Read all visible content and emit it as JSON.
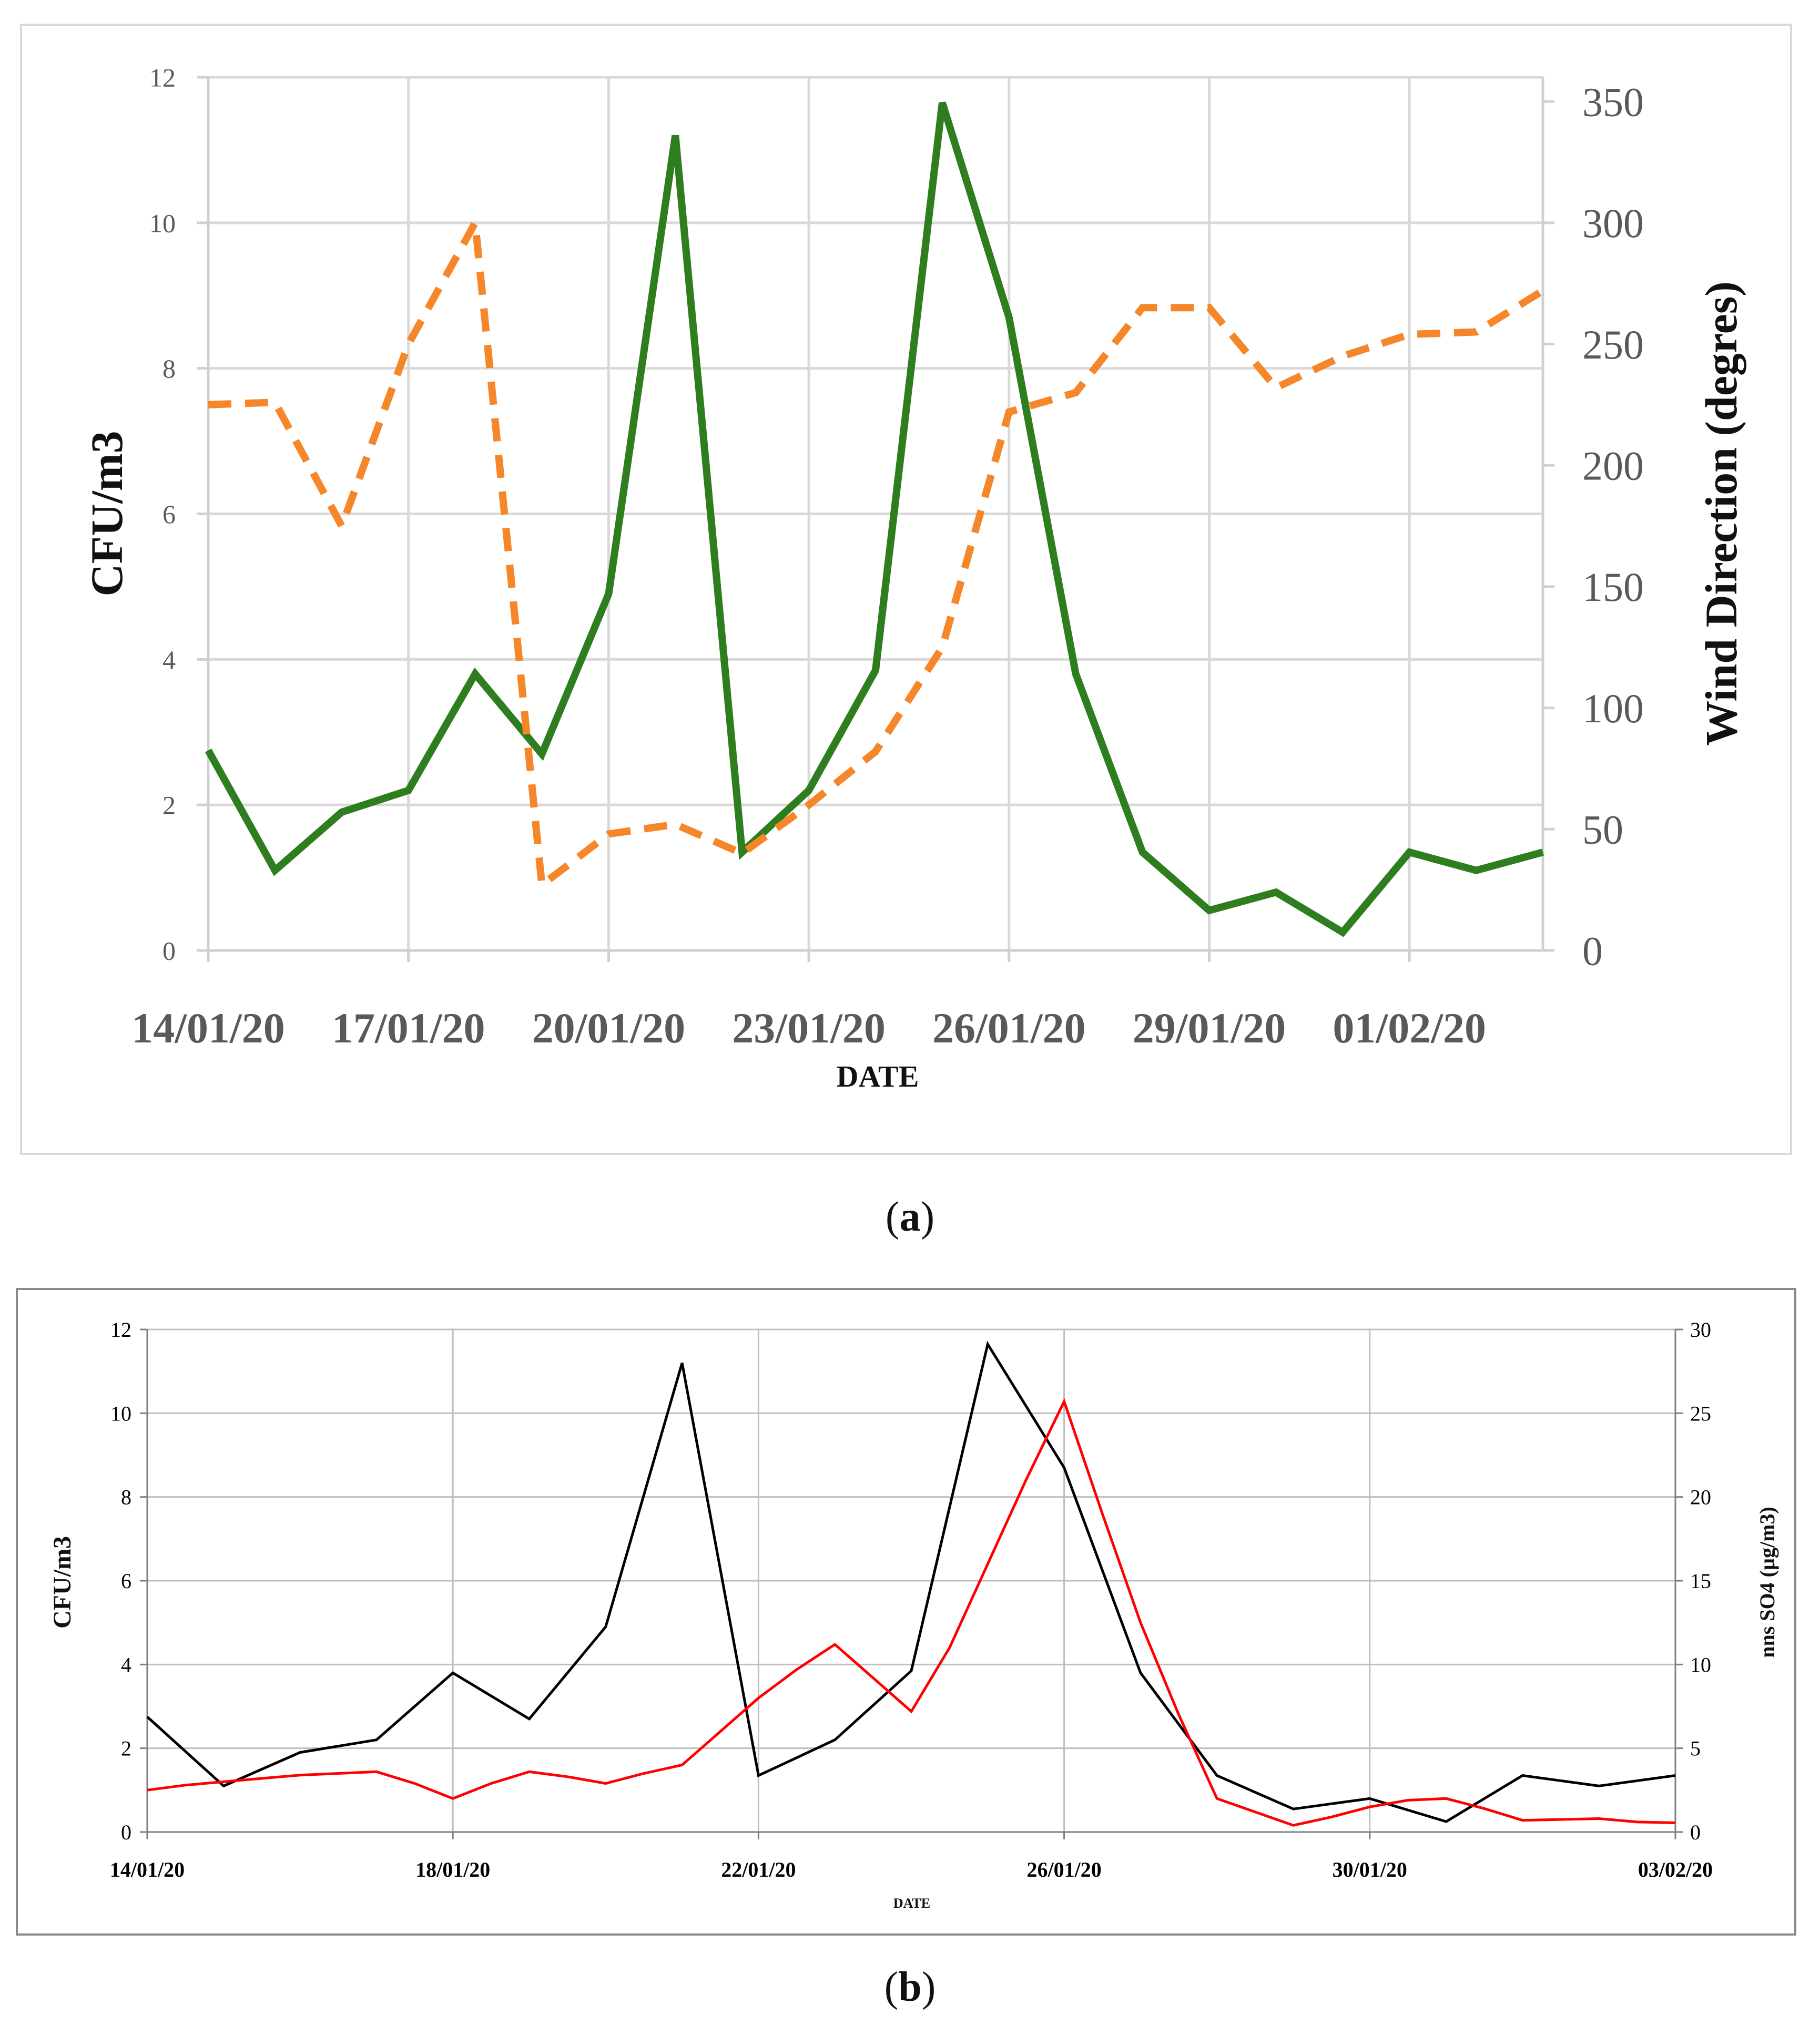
{
  "chart_data": [
    {
      "panel": "a",
      "type": "line",
      "xlabel": "DATE",
      "ylabel": "CFU/m3",
      "y2label": "Wind Direction (degres)",
      "x_tick_labels": [
        "14/01/20",
        "17/01/20",
        "20/01/20",
        "23/01/20",
        "26/01/20",
        "29/01/20",
        "01/02/20"
      ],
      "y_ticks": [
        "0",
        "2",
        "4",
        "6",
        "8",
        "10",
        "12"
      ],
      "y2_ticks": [
        "0",
        "50",
        "100",
        "150",
        "200",
        "250",
        "300",
        "350"
      ],
      "ylim": [
        0,
        12
      ],
      "y2lim": [
        0,
        360
      ],
      "x_days": [
        0,
        20
      ],
      "series": [
        {
          "name": "CFU/m3",
          "axis": "left",
          "color": "#2e7d1e",
          "style": "solid",
          "x": [
            0,
            1,
            2,
            3,
            4,
            5,
            6,
            7,
            8,
            9,
            10,
            11,
            12,
            13,
            14,
            15,
            16,
            17,
            18,
            19,
            20
          ],
          "values": [
            2.75,
            1.1,
            1.9,
            2.2,
            3.8,
            2.7,
            4.9,
            11.2,
            1.35,
            2.2,
            3.85,
            11.65,
            8.7,
            3.8,
            1.35,
            0.55,
            0.8,
            0.25,
            1.35,
            1.1,
            1.35
          ]
        },
        {
          "name": "Wind Direction",
          "axis": "right",
          "color": "#f5862a",
          "style": "dashed",
          "x": [
            0,
            1,
            2,
            3,
            4,
            5,
            6,
            7,
            8,
            9,
            10,
            11,
            12,
            13,
            14,
            15,
            16,
            17,
            18,
            19,
            20
          ],
          "values": [
            225,
            226,
            175,
            250,
            300,
            27,
            48,
            52,
            40,
            60,
            82,
            125,
            222,
            230,
            265,
            265,
            232,
            245,
            254,
            255,
            272
          ]
        }
      ]
    },
    {
      "panel": "b",
      "type": "line",
      "xlabel": "DATE",
      "ylabel": "CFU/m3",
      "y2label": "nns SO4 (µg/m3)",
      "x_tick_labels": [
        "14/01/20",
        "18/01/20",
        "22/01/20",
        "26/01/20",
        "30/01/20",
        "03/02/20"
      ],
      "y_ticks": [
        "0",
        "2",
        "4",
        "6",
        "8",
        "10",
        "12"
      ],
      "y2_ticks": [
        "0",
        "5",
        "10",
        "15",
        "20",
        "25",
        "30"
      ],
      "ylim": [
        0,
        12
      ],
      "y2lim": [
        0,
        30
      ],
      "x_days": [
        0,
        20
      ],
      "series": [
        {
          "name": "CFU/m3",
          "axis": "left",
          "color": "#000000",
          "style": "solid",
          "x": [
            0,
            1,
            2,
            3,
            4,
            5,
            6,
            7,
            8,
            9,
            10,
            11,
            12,
            13,
            14,
            15,
            16,
            17,
            18,
            19,
            20
          ],
          "values": [
            2.75,
            1.1,
            1.9,
            2.2,
            3.8,
            2.7,
            4.9,
            11.2,
            1.35,
            2.2,
            3.85,
            11.65,
            8.7,
            3.8,
            1.35,
            0.55,
            0.8,
            0.25,
            1.35,
            1.1,
            1.35
          ]
        },
        {
          "name": "nns SO4",
          "axis": "right",
          "color": "#ff0000",
          "style": "solid",
          "x": [
            0,
            0.5,
            1,
            1.5,
            2,
            2.5,
            3,
            3.5,
            4,
            4.5,
            5,
            5.5,
            6,
            6.5,
            7,
            7.5,
            8,
            8.5,
            9,
            9.5,
            10,
            10.5,
            11,
            11.5,
            12,
            12.5,
            13,
            13.5,
            14,
            14.5,
            15,
            15.5,
            16,
            16.5,
            17,
            17.5,
            18,
            18.5,
            19,
            19.5,
            20
          ],
          "values": [
            2.5,
            2.8,
            3.0,
            3.2,
            3.4,
            3.5,
            3.6,
            2.9,
            2.0,
            2.9,
            3.6,
            3.3,
            2.9,
            3.5,
            4.0,
            6.0,
            8.0,
            9.7,
            11.2,
            9.2,
            7.2,
            11.0,
            16.0,
            21.0,
            25.7,
            19.0,
            12.5,
            7.0,
            2.0,
            1.2,
            0.4,
            0.9,
            1.5,
            1.9,
            2.0,
            1.4,
            0.7,
            0.75,
            0.8,
            0.6,
            0.55
          ]
        }
      ]
    }
  ],
  "captions": {
    "a_open": "(",
    "a_letter": "a",
    "a_close": ")",
    "b_open": "(",
    "b_letter": "b",
    "b_close": ")"
  }
}
